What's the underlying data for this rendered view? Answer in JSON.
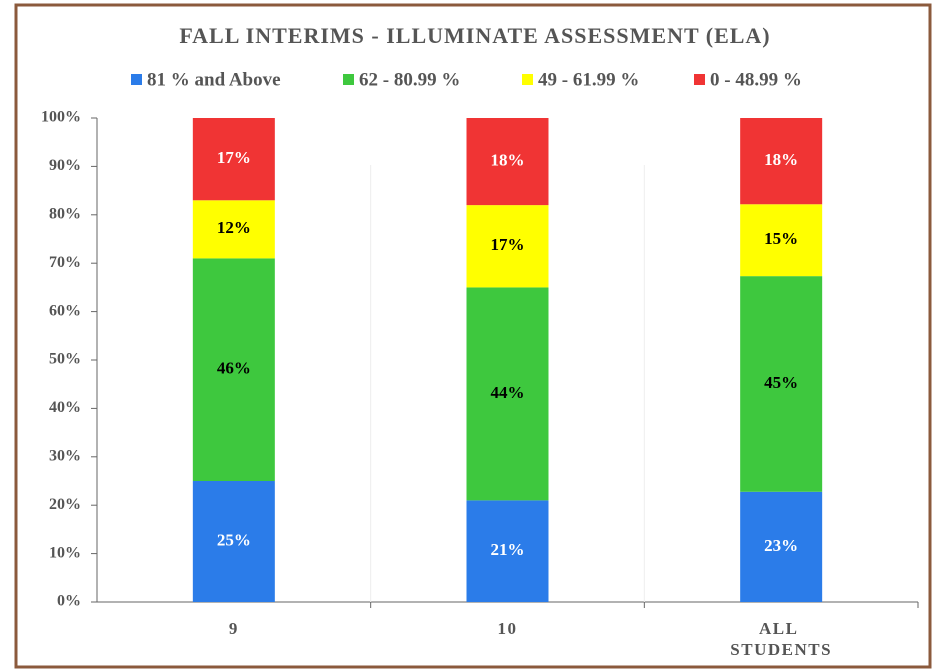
{
  "chart_data": {
    "type": "stacked_bar",
    "stacking": "percent",
    "title": "FALL INTERIMS - ILLUMINATE ASSESSMENT (ELA)",
    "categories": [
      "9",
      "10",
      "ALL STUDENTS"
    ],
    "series": [
      {
        "name": "81 % and Above",
        "color": "#2b7ce9",
        "label_color": "#ffffff",
        "values": [
          25,
          21,
          23
        ],
        "value_labels": [
          "25%",
          "21%",
          "23%"
        ]
      },
      {
        "name": "62 - 80.99 %",
        "color": "#3ec83e",
        "label_color": "#000000",
        "values": [
          46,
          44,
          45
        ],
        "value_labels": [
          "46%",
          "44%",
          "45%"
        ]
      },
      {
        "name": "49 - 61.99 %",
        "color": "#ffff00",
        "label_color": "#000000",
        "values": [
          12,
          17,
          15
        ],
        "value_labels": [
          "12%",
          "17%",
          "15%"
        ]
      },
      {
        "name": "0 - 48.99 %",
        "color": "#f03434",
        "label_color": "#ffffff",
        "values": [
          17,
          18,
          18
        ],
        "value_labels": [
          "17%",
          "18%",
          "18%"
        ]
      }
    ],
    "ylim": [
      0,
      100
    ],
    "yticks": [
      {
        "value": 0,
        "label": "0%"
      },
      {
        "value": 10,
        "label": "10%"
      },
      {
        "value": 20,
        "label": "20%"
      },
      {
        "value": 30,
        "label": "30%"
      },
      {
        "value": 40,
        "label": "40%"
      },
      {
        "value": 50,
        "label": "50%"
      },
      {
        "value": 60,
        "label": "60%"
      },
      {
        "value": 70,
        "label": "70%"
      },
      {
        "value": 80,
        "label": "80%"
      },
      {
        "value": 90,
        "label": "90%"
      },
      {
        "value": 100,
        "label": "100%"
      }
    ],
    "legend": "top"
  }
}
